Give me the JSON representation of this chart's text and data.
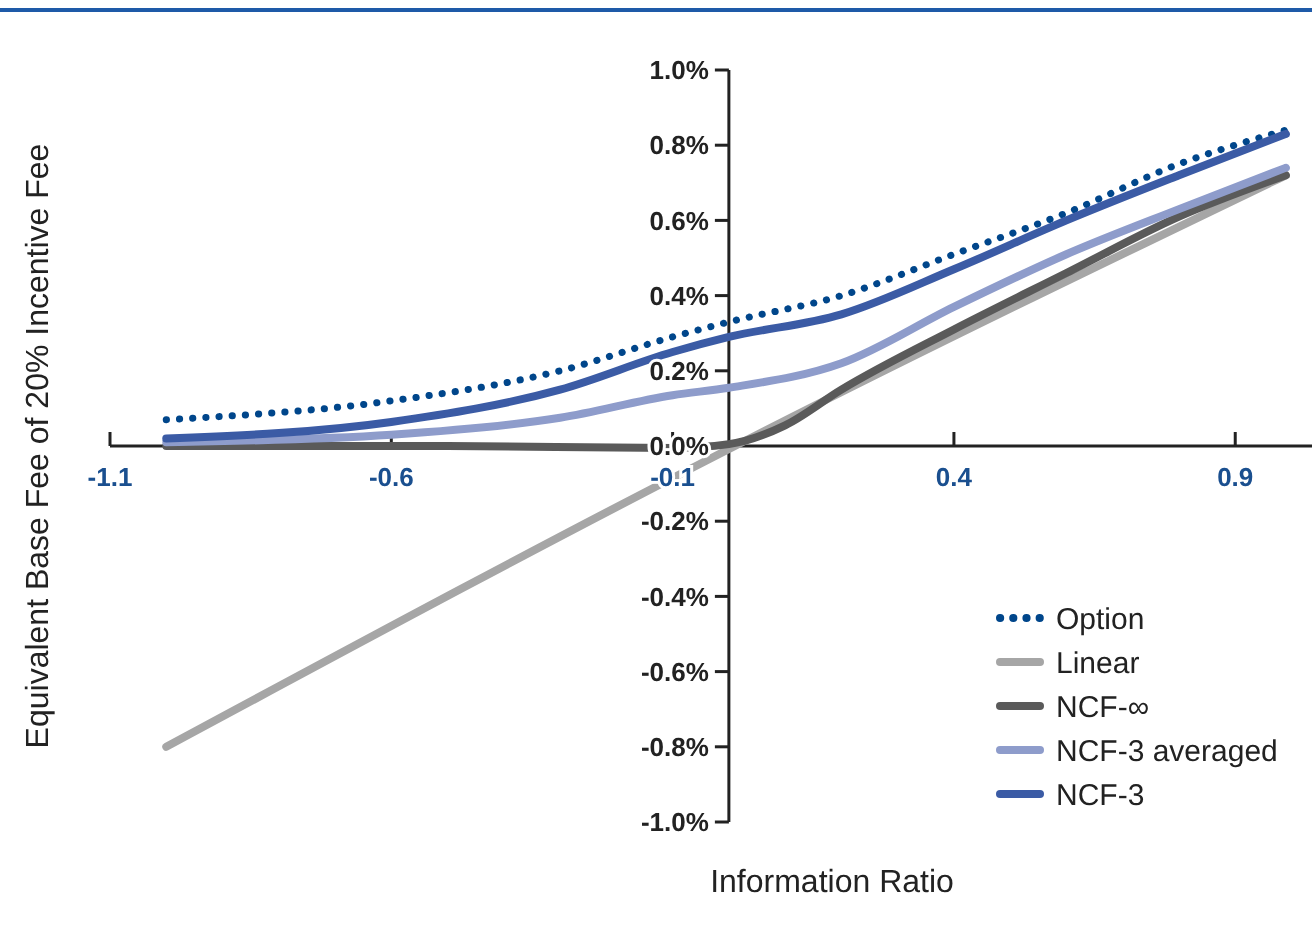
{
  "chart_data": {
    "type": "line",
    "xlabel": "Information Ratio",
    "ylabel": "Equivalent Base Fee of 20% Incentive Fee",
    "xlim": [
      -1.1,
      1.04
    ],
    "xticks": [
      -1.1,
      -0.6,
      -0.1,
      0.4,
      0.9
    ],
    "ylim": [
      -1.0,
      1.0
    ],
    "yticks": [
      {
        "value": -1.0,
        "label": "-1.0%"
      },
      {
        "value": -0.8,
        "label": "-0.8%"
      },
      {
        "value": -0.6,
        "label": "-0.6%"
      },
      {
        "value": -0.4,
        "label": "-0.4%"
      },
      {
        "value": -0.2,
        "label": "-0.2%"
      },
      {
        "value": 0,
        "label": "0.0%"
      },
      {
        "value": 0.2,
        "label": "0.2%"
      },
      {
        "value": 0.4,
        "label": "0.4%"
      },
      {
        "value": 0.6,
        "label": "0.6%"
      },
      {
        "value": 0.8,
        "label": "0.8%"
      },
      {
        "value": 1.0,
        "label": "1.0%"
      }
    ],
    "grid": false,
    "legend": "bottom right",
    "x": [
      -1,
      -0.6,
      -0.3,
      -0.1,
      0,
      0.2,
      0.4,
      0.6,
      0.8,
      0.99
    ],
    "series": [
      {
        "name": "Option",
        "color": "#00468b",
        "line_style": "dotted",
        "values": [
          0.07,
          0.12,
          0.2,
          0.29,
          0.33,
          0.4,
          0.51,
          0.62,
          0.75,
          0.84
        ]
      },
      {
        "name": "Linear",
        "color": "#a6a6a6",
        "line_style": "solid",
        "x": [
          -1,
          0.05,
          0.99
        ],
        "values": [
          -0.8,
          0.03,
          0.72
        ]
      },
      {
        "name": "NCF-∞",
        "color": "#5a5a5a",
        "line_style": "solid",
        "x": [
          -1,
          -0.5,
          -0.1,
          0,
          0.1,
          0.2,
          0.4,
          0.6,
          0.8,
          0.99
        ],
        "values": [
          0,
          0,
          -0.005,
          0.005,
          0.055,
          0.15,
          0.31,
          0.46,
          0.61,
          0.72
        ]
      },
      {
        "name": "NCF-3 averaged",
        "color": "#8e9ccb",
        "line_style": "solid",
        "values": [
          0.01,
          0.03,
          0.075,
          0.135,
          0.155,
          0.22,
          0.37,
          0.51,
          0.63,
          0.74
        ]
      },
      {
        "name": "NCF-3",
        "color": "#3b5ba5",
        "line_style": "solid",
        "values": [
          0.02,
          0.064,
          0.15,
          0.25,
          0.29,
          0.35,
          0.47,
          0.6,
          0.72,
          0.83
        ]
      }
    ]
  }
}
